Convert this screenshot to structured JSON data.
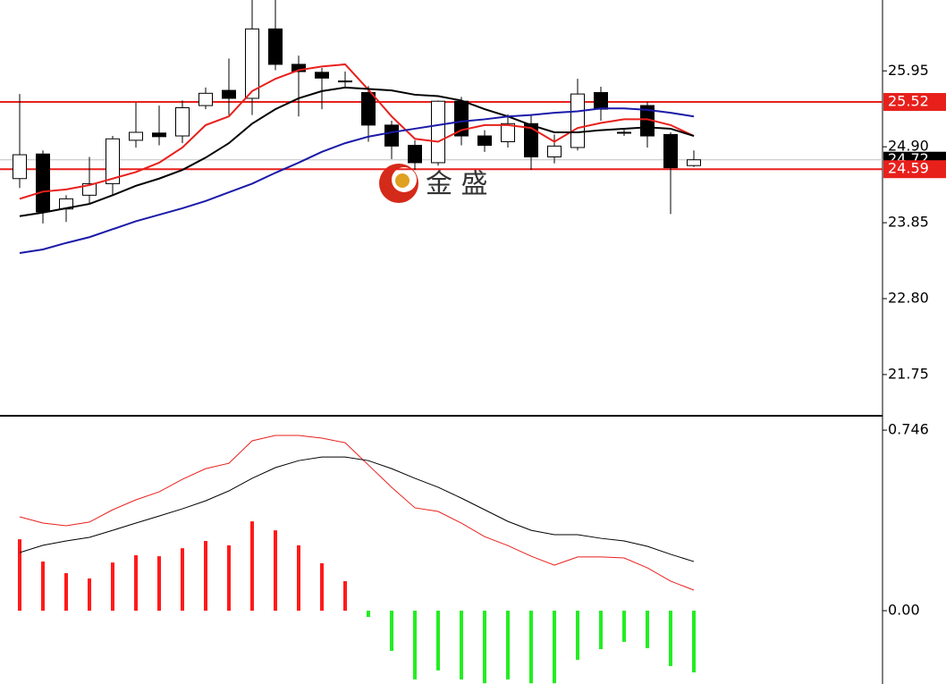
{
  "chart_data": [
    {
      "type": "candlestick",
      "open": [
        24.46,
        24.8,
        24.04,
        24.23,
        24.39,
        24.99,
        25.09,
        25.05,
        25.47,
        25.68,
        25.57,
        26.53,
        26.04,
        25.93,
        25.81,
        25.65,
        25.2,
        24.92,
        24.68,
        25.53,
        25.05,
        24.97,
        25.22,
        24.76,
        24.89,
        25.65,
        25.1,
        25.47,
        25.07,
        24.64
      ],
      "high": [
        25.63,
        24.85,
        24.23,
        24.76,
        25.05,
        25.51,
        25.47,
        25.54,
        25.72,
        26.12,
        26.93,
        26.93,
        26.16,
        25.99,
        25.94,
        25.74,
        25.26,
        24.99,
        25.54,
        25.59,
        25.13,
        25.35,
        25.35,
        25.07,
        25.84,
        25.73,
        25.15,
        25.52,
        25.1,
        24.85
      ],
      "low": [
        24.33,
        23.84,
        23.86,
        24.11,
        24.23,
        24.89,
        24.92,
        24.95,
        25.42,
        25.34,
        25.34,
        25.96,
        25.32,
        25.42,
        25.72,
        24.97,
        24.73,
        24.58,
        24.64,
        24.92,
        24.83,
        24.89,
        24.58,
        24.67,
        24.85,
        25.26,
        25.05,
        24.89,
        23.97,
        24.62
      ],
      "close": [
        24.79,
        24.0,
        24.18,
        24.39,
        25.01,
        25.1,
        25.04,
        25.44,
        25.64,
        25.57,
        26.53,
        26.04,
        25.94,
        25.85,
        25.81,
        25.2,
        24.91,
        24.68,
        25.53,
        25.05,
        24.92,
        25.22,
        24.76,
        24.91,
        25.63,
        25.42,
        25.1,
        25.05,
        24.61,
        24.72
      ],
      "up_color": "#ffffff",
      "down_color": "#000000",
      "series": [
        {
          "color": "#e8201c",
          "values": [
            24.18,
            24.28,
            24.31,
            24.37,
            24.46,
            24.55,
            24.68,
            24.89,
            25.2,
            25.32,
            25.67,
            25.84,
            25.96,
            26.01,
            26.04,
            25.69,
            25.32,
            25.01,
            24.97,
            25.13,
            25.2,
            25.2,
            25.16,
            24.97,
            25.16,
            25.23,
            25.28,
            25.28,
            25.2,
            25.05
          ]
        },
        {
          "color": "#000000",
          "values": [
            23.94,
            23.99,
            24.05,
            24.11,
            24.23,
            24.36,
            24.46,
            24.58,
            24.75,
            24.95,
            25.22,
            25.42,
            25.57,
            25.67,
            25.72,
            25.7,
            25.68,
            25.62,
            25.6,
            25.54,
            25.42,
            25.32,
            25.2,
            25.1,
            25.1,
            25.13,
            25.15,
            25.17,
            25.15,
            25.05
          ]
        },
        {
          "color": "#1a1aa8",
          "values": [
            23.43,
            23.48,
            23.57,
            23.65,
            23.76,
            23.87,
            23.96,
            24.05,
            24.15,
            24.27,
            24.39,
            24.54,
            24.68,
            24.83,
            24.95,
            25.04,
            25.1,
            25.15,
            25.2,
            25.25,
            25.28,
            25.32,
            25.34,
            25.37,
            25.39,
            25.43,
            25.43,
            25.41,
            25.37,
            25.32
          ]
        }
      ],
      "ylim": [
        21.18,
        26.93
      ],
      "yticks": [
        {
          "value": 21.75,
          "label": "21.75"
        },
        {
          "value": 22.8,
          "label": "22.80"
        },
        {
          "value": 23.85,
          "label": "23.85"
        },
        {
          "value": 24.9,
          "label": "24.90"
        },
        {
          "value": 25.95,
          "label": "25.95"
        }
      ],
      "current_price": 24.72,
      "levels": [
        {
          "value": 25.52,
          "color": "#e8201c"
        },
        {
          "value": 24.59,
          "color": "#e8201c"
        }
      ],
      "watermark": "金 盛"
    },
    {
      "type": "macd",
      "values": [
        0.295,
        0.203,
        0.155,
        0.133,
        0.199,
        0.229,
        0.225,
        0.258,
        0.288,
        0.27,
        0.369,
        0.332,
        0.27,
        0.196,
        0.122,
        -0.026,
        -0.166,
        -0.284,
        -0.247,
        -0.284,
        -0.3,
        -0.284,
        -0.3,
        -0.3,
        -0.203,
        -0.159,
        -0.129,
        -0.155,
        -0.229,
        -0.255
      ],
      "positive_color": "#ff1a1a",
      "negative_color": "#22ee22",
      "series": [
        {
          "color": "#e8201c",
          "values": [
            0.388,
            0.362,
            0.351,
            0.366,
            0.417,
            0.458,
            0.491,
            0.543,
            0.587,
            0.609,
            0.702,
            0.724,
            0.724,
            0.713,
            0.694,
            0.602,
            0.51,
            0.425,
            0.41,
            0.362,
            0.306,
            0.269,
            0.225,
            0.188,
            0.222,
            0.222,
            0.218,
            0.177,
            0.122,
            0.085
          ]
        },
        {
          "color": "#000000",
          "values": [
            0.24,
            0.27,
            0.288,
            0.303,
            0.332,
            0.362,
            0.391,
            0.421,
            0.454,
            0.495,
            0.547,
            0.591,
            0.62,
            0.635,
            0.635,
            0.62,
            0.587,
            0.547,
            0.51,
            0.465,
            0.417,
            0.369,
            0.332,
            0.314,
            0.314,
            0.299,
            0.288,
            0.266,
            0.233,
            0.203
          ]
        }
      ],
      "ylim": [
        -0.303,
        0.798
      ],
      "yticks": [
        {
          "value": 0,
          "label": "0.00"
        },
        0.746
      ]
    }
  ]
}
